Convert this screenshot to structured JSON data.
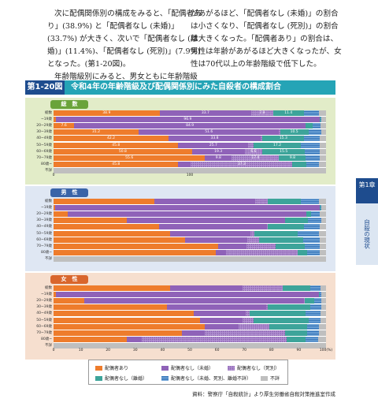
{
  "text": {
    "left": [
      "次に配偶関係別の構成をみると、「配偶者あり」(38.9%) と「配偶者なし (未婚)」(33.7%) が大きく、次いで「配偶者なし (離婚)」(11.4%)、「配偶者なし (死別)」(7.9%) となった。(第1-20図)。",
      "年齢階級別にみると、男女ともに年齢階級"
    ],
    "right": [
      "があがるほど、「配偶者なし (未婚)」の割合は小さくなり、「配偶者なし (死別)」の割合は大きくなった。「配偶者あり」の割合は、男性は年齢があがるほど大きくなったが、女性は70代以上の年齢階級で低下した。"
    ]
  },
  "figure": {
    "number": "第1-20図",
    "title": "令和4年の年齢階級及び配偶関係別にみた自殺者の構成割合"
  },
  "side_tab": {
    "chapter": "第1章",
    "section": "自殺の現状"
  },
  "axis_ticks_total": [
    "0",
    "100"
  ],
  "axis_ticks": [
    "0",
    "10",
    "20",
    "30",
    "40",
    "50",
    "60",
    "70",
    "80",
    "90",
    "100(%)"
  ],
  "legend": [
    {
      "label": "配偶者あり",
      "color": "#ee7c2c"
    },
    {
      "label": "配偶者なし（未婚）",
      "color": "#8f62b8"
    },
    {
      "label": "配偶者なし（死別）",
      "color": "#b08fd0"
    },
    {
      "label": "配偶者なし（離婚）",
      "color": "#3da49a"
    },
    {
      "label": "配偶者なし（未婚、死別、離婚不詳）",
      "color": "#2f6fb5"
    },
    {
      "label": "不詳",
      "color": "#bfbfbf"
    }
  ],
  "source": "資料：警察庁「自殺統計」より厚生労働省自殺対策推進室作成",
  "panels": [
    {
      "key": "total",
      "label": "総　数",
      "rows": [
        {
          "age": "総数",
          "v": [
            38.9,
            33.7,
            7.9,
            11.4,
            5.6,
            2.5
          ],
          "labels": [
            "38.9",
            "33.7",
            "7.9",
            "11.4",
            "",
            ""
          ]
        },
        {
          "age": "~19歳",
          "v": [
            0.8,
            96.9,
            0.0,
            0.2,
            0.5,
            1.6
          ],
          "labels": [
            "",
            "96.9",
            "",
            "",
            "",
            ""
          ]
        },
        {
          "age": "20~29歳",
          "v": [
            7.6,
            84.9,
            0.1,
            2.5,
            2.9,
            2.0
          ],
          "labels": [
            "7.6",
            "84.9",
            "",
            "",
            "",
            ""
          ]
        },
        {
          "age": "30~39歳",
          "v": [
            31.2,
            51.6,
            0.3,
            10.5,
            4.6,
            1.8
          ],
          "labels": [
            "31.2",
            "51.6",
            "",
            "10.5",
            "",
            ""
          ]
        },
        {
          "age": "40~49歳",
          "v": [
            42.2,
            33.8,
            0.7,
            15.3,
            5.7,
            2.3
          ],
          "labels": [
            "42.2",
            "33.8",
            "",
            "15.3",
            "",
            ""
          ]
        },
        {
          "age": "50~59歳",
          "v": [
            45.8,
            25.7,
            2.0,
            17.2,
            6.9,
            2.4
          ],
          "labels": [
            "45.8",
            "25.7",
            "",
            "17.2",
            "",
            ""
          ]
        },
        {
          "age": "60~69歳",
          "v": [
            50.8,
            19.3,
            6.6,
            15.5,
            5.5,
            2.3
          ],
          "labels": [
            "50.8",
            "19.3",
            "6.6",
            "15.5",
            "",
            ""
          ]
        },
        {
          "age": "70~79歳",
          "v": [
            55.6,
            9.8,
            17.4,
            9.8,
            5.0,
            2.4
          ],
          "labels": [
            "55.6",
            "9.8",
            "17.4",
            "9.8",
            "",
            ""
          ]
        },
        {
          "age": "80歳~",
          "v": [
            45.8,
            4.6,
            37.3,
            5.0,
            4.7,
            2.6
          ],
          "labels": [
            "45.8",
            "",
            "37.3",
            "",
            "",
            ""
          ]
        },
        {
          "age": "不詳",
          "v": [
            0,
            0,
            0,
            0,
            0,
            100
          ],
          "labels": [
            "",
            "",
            "",
            "",
            "",
            ""
          ]
        }
      ]
    },
    {
      "key": "male",
      "label": "男　性",
      "rows": [
        {
          "age": "総数",
          "v": [
            37.0,
            36.9,
            4.8,
            12.0,
            6.6,
            2.7
          ],
          "labels": [
            "",
            "",
            "",
            "",
            "",
            ""
          ]
        },
        {
          "age": "~19歳",
          "v": [
            0.5,
            97.3,
            0.0,
            0.1,
            0.5,
            1.6
          ],
          "labels": [
            "",
            "",
            "",
            "",
            "",
            ""
          ]
        },
        {
          "age": "20~29歳",
          "v": [
            5.2,
            87.6,
            0.0,
            1.8,
            3.2,
            2.2
          ],
          "labels": [
            "",
            "",
            "",
            "",
            "",
            ""
          ]
        },
        {
          "age": "30~39歳",
          "v": [
            26.9,
            58.0,
            0.1,
            8.3,
            4.9,
            1.8
          ],
          "labels": [
            "",
            "",
            "",
            "",
            "",
            ""
          ]
        },
        {
          "age": "40~49歳",
          "v": [
            38.6,
            39.7,
            0.4,
            13.2,
            5.8,
            2.3
          ],
          "labels": [
            "",
            "",
            "",
            "",
            "",
            ""
          ]
        },
        {
          "age": "50~59歳",
          "v": [
            42.7,
            29.7,
            1.2,
            16.1,
            7.7,
            2.6
          ],
          "labels": [
            "",
            "",
            "",
            "",
            "",
            ""
          ]
        },
        {
          "age": "60~69歳",
          "v": [
            48.4,
            22.7,
            4.4,
            16.2,
            6.1,
            2.2
          ],
          "labels": [
            "",
            "",
            "",
            "",
            "",
            ""
          ]
        },
        {
          "age": "70~79歳",
          "v": [
            60.4,
            10.5,
            10.5,
            10.8,
            5.5,
            2.3
          ],
          "labels": [
            "",
            "",
            "",
            "",
            "",
            ""
          ]
        },
        {
          "age": "80歳~",
          "v": [
            59.4,
            3.8,
            26.3,
            3.6,
            4.5,
            2.4
          ],
          "labels": [
            "",
            "",
            "",
            "",
            "",
            ""
          ]
        },
        {
          "age": "不詳",
          "v": [
            0,
            0,
            0,
            0,
            0,
            100
          ],
          "labels": [
            "",
            "",
            "",
            "",
            "",
            ""
          ]
        }
      ]
    },
    {
      "key": "female",
      "label": "女　性",
      "rows": [
        {
          "age": "総数",
          "v": [
            42.9,
            26.6,
            14.6,
            10.2,
            3.6,
            2.1
          ],
          "labels": [
            "",
            "",
            "",
            "",
            "",
            ""
          ]
        },
        {
          "age": "~19歳",
          "v": [
            1.0,
            96.5,
            0.0,
            0.3,
            0.6,
            1.6
          ],
          "labels": [
            "",
            "",
            "",
            "",
            "",
            ""
          ]
        },
        {
          "age": "20~29歳",
          "v": [
            11.2,
            80.8,
            0.2,
            3.6,
            2.4,
            1.8
          ],
          "labels": [
            "",
            "",
            "",
            "",
            "",
            ""
          ]
        },
        {
          "age": "30~39歳",
          "v": [
            41.5,
            36.4,
            0.6,
            15.7,
            4.0,
            1.8
          ],
          "labels": [
            "",
            "",
            "",
            "",
            "",
            ""
          ]
        },
        {
          "age": "40~49歳",
          "v": [
            51.4,
            19.2,
            1.4,
            20.6,
            5.3,
            2.1
          ],
          "labels": [
            "",
            "",
            "",
            "",
            "",
            ""
          ]
        },
        {
          "age": "50~59歳",
          "v": [
            53.9,
            15.5,
            4.1,
            20.1,
            4.5,
            1.9
          ],
          "labels": [
            "",
            "",
            "",
            "",
            "",
            ""
          ]
        },
        {
          "age": "60~69歳",
          "v": [
            55.6,
            12.4,
            11.1,
            14.0,
            4.3,
            2.6
          ],
          "labels": [
            "",
            "",
            "",
            "",
            "",
            ""
          ]
        },
        {
          "age": "70~79歳",
          "v": [
            47.0,
            8.5,
            29.6,
            7.9,
            4.4,
            2.6
          ],
          "labels": [
            "",
            "",
            "",
            "",
            "",
            ""
          ]
        },
        {
          "age": "80歳~",
          "v": [
            26.9,
            5.6,
            53.0,
            6.9,
            4.8,
            2.8
          ],
          "labels": [
            "",
            "",
            "",
            "",
            "",
            ""
          ]
        },
        {
          "age": "不詳",
          "v": [
            0,
            0,
            0,
            0,
            0,
            100
          ],
          "labels": [
            "",
            "",
            "",
            "",
            "",
            ""
          ]
        }
      ]
    }
  ]
}
